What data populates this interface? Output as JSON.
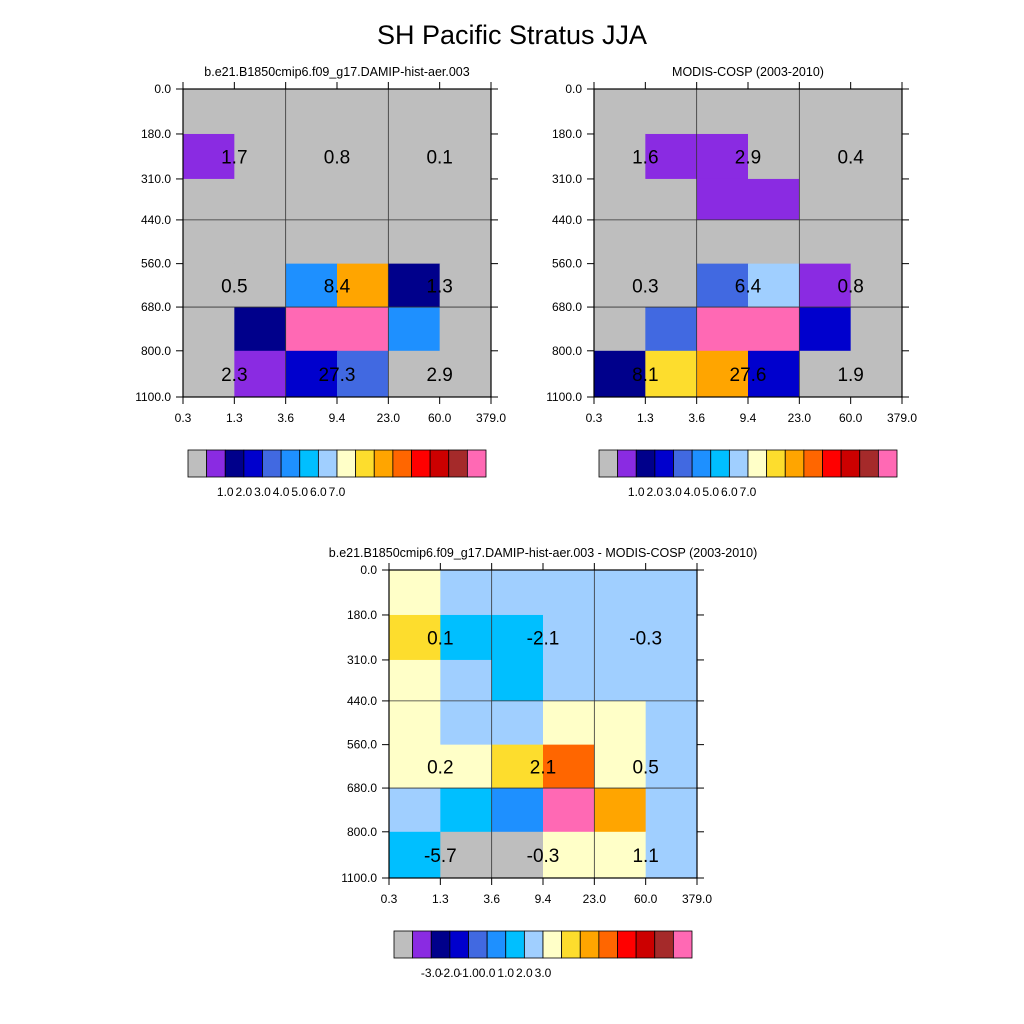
{
  "title": "SH Pacific Stratus JJA",
  "colormap": [
    "#bebebe",
    "#8a2be2",
    "#00008b",
    "#0000cd",
    "#4169e1",
    "#1e90ff",
    "#00bfff",
    "#a0cfff",
    "#ffffc8",
    "#fddd2d",
    "#ffa500",
    "#ff6600",
    "#ff0000",
    "#cc0000",
    "#a52a2a",
    "#ff69b4"
  ],
  "chart_data": [
    {
      "type": "heatmap",
      "subtitle": "b.e21.B1850cmip6.f09_g17.DAMIP-hist-aer.003",
      "x_ticks": [
        "0.3",
        "1.3",
        "3.6",
        "9.4",
        "23.0",
        "60.0",
        "379.0"
      ],
      "y_ticks": [
        "0.0",
        "180.0",
        "310.0",
        "440.0",
        "560.0",
        "680.0",
        "800.0",
        "1100.0"
      ],
      "colorbar_labels": [
        "1.0",
        "2.0",
        "3.0",
        "4.0",
        "5.0",
        "6.0",
        "7.0"
      ],
      "cell_color_index": [
        [
          0,
          0,
          0,
          0,
          0,
          0
        ],
        [
          1,
          0,
          0,
          0,
          0,
          0
        ],
        [
          0,
          0,
          0,
          0,
          0,
          0
        ],
        [
          0,
          0,
          0,
          0,
          0,
          0
        ],
        [
          0,
          0,
          5,
          10,
          2,
          0
        ],
        [
          0,
          2,
          15,
          15,
          5,
          0
        ],
        [
          0,
          1,
          3,
          4,
          0,
          0
        ]
      ],
      "block_labels": [
        {
          "text": "1.7",
          "row": 1,
          "col": 0
        },
        {
          "text": "0.8",
          "row": 1,
          "col": 2
        },
        {
          "text": "0.1",
          "row": 1,
          "col": 4
        },
        {
          "text": "0.5",
          "row": 4,
          "col": 0
        },
        {
          "text": "8.4",
          "row": 4,
          "col": 2
        },
        {
          "text": "1.3",
          "row": 4,
          "col": 4
        },
        {
          "text": "2.3",
          "row": 6,
          "col": 0
        },
        {
          "text": "27.3",
          "row": 6,
          "col": 2
        },
        {
          "text": "2.9",
          "row": 6,
          "col": 4
        }
      ]
    },
    {
      "type": "heatmap",
      "subtitle": "MODIS-COSP (2003-2010)",
      "x_ticks": [
        "0.3",
        "1.3",
        "3.6",
        "9.4",
        "23.0",
        "60.0",
        "379.0"
      ],
      "y_ticks": [
        "0.0",
        "180.0",
        "310.0",
        "440.0",
        "560.0",
        "680.0",
        "800.0",
        "1100.0"
      ],
      "colorbar_labels": [
        "1.0",
        "2.0",
        "3.0",
        "4.0",
        "5.0",
        "6.0",
        "7.0"
      ],
      "cell_color_index": [
        [
          0,
          0,
          0,
          0,
          0,
          0
        ],
        [
          0,
          1,
          1,
          0,
          0,
          0
        ],
        [
          0,
          0,
          1,
          1,
          0,
          0
        ],
        [
          0,
          0,
          0,
          0,
          0,
          0
        ],
        [
          0,
          0,
          4,
          7,
          1,
          0
        ],
        [
          0,
          4,
          15,
          15,
          3,
          0
        ],
        [
          2,
          9,
          10,
          3,
          0,
          0
        ]
      ],
      "block_labels": [
        {
          "text": "1.6",
          "row": 1,
          "col": 0
        },
        {
          "text": "2.9",
          "row": 1,
          "col": 2
        },
        {
          "text": "0.4",
          "row": 1,
          "col": 4
        },
        {
          "text": "0.3",
          "row": 4,
          "col": 0
        },
        {
          "text": "6.4",
          "row": 4,
          "col": 2
        },
        {
          "text": "0.8",
          "row": 4,
          "col": 4
        },
        {
          "text": "8.1",
          "row": 6,
          "col": 0
        },
        {
          "text": "27.6",
          "row": 6,
          "col": 2
        },
        {
          "text": "1.9",
          "row": 6,
          "col": 4
        }
      ]
    },
    {
      "type": "heatmap",
      "subtitle": "b.e21.B1850cmip6.f09_g17.DAMIP-hist-aer.003 - MODIS-COSP (2003-2010)",
      "x_ticks": [
        "0.3",
        "1.3",
        "3.6",
        "9.4",
        "23.0",
        "60.0",
        "379.0"
      ],
      "y_ticks": [
        "0.0",
        "180.0",
        "310.0",
        "440.0",
        "560.0",
        "680.0",
        "800.0",
        "1100.0"
      ],
      "colorbar_labels": [
        "-3.0",
        "-2.0",
        "-1.0",
        "0.0",
        "1.0",
        "2.0",
        "3.0"
      ],
      "cell_color_index": [
        [
          8,
          7,
          7,
          7,
          7,
          7
        ],
        [
          9,
          6,
          6,
          7,
          7,
          7
        ],
        [
          8,
          7,
          6,
          7,
          7,
          7
        ],
        [
          8,
          7,
          7,
          8,
          8,
          7
        ],
        [
          8,
          8,
          9,
          11,
          8,
          7
        ],
        [
          7,
          6,
          5,
          15,
          10,
          7
        ],
        [
          6,
          0,
          0,
          8,
          8,
          7
        ]
      ],
      "block_labels": [
        {
          "text": "0.1",
          "row": 1,
          "col": 0
        },
        {
          "text": "-2.1",
          "row": 1,
          "col": 2
        },
        {
          "text": "-0.3",
          "row": 1,
          "col": 4
        },
        {
          "text": "0.2",
          "row": 4,
          "col": 0
        },
        {
          "text": "2.1",
          "row": 4,
          "col": 2
        },
        {
          "text": "0.5",
          "row": 4,
          "col": 4
        },
        {
          "text": "-5.7",
          "row": 6,
          "col": 0
        },
        {
          "text": "-0.3",
          "row": 6,
          "col": 2
        },
        {
          "text": "1.1",
          "row": 6,
          "col": 4
        }
      ]
    }
  ]
}
